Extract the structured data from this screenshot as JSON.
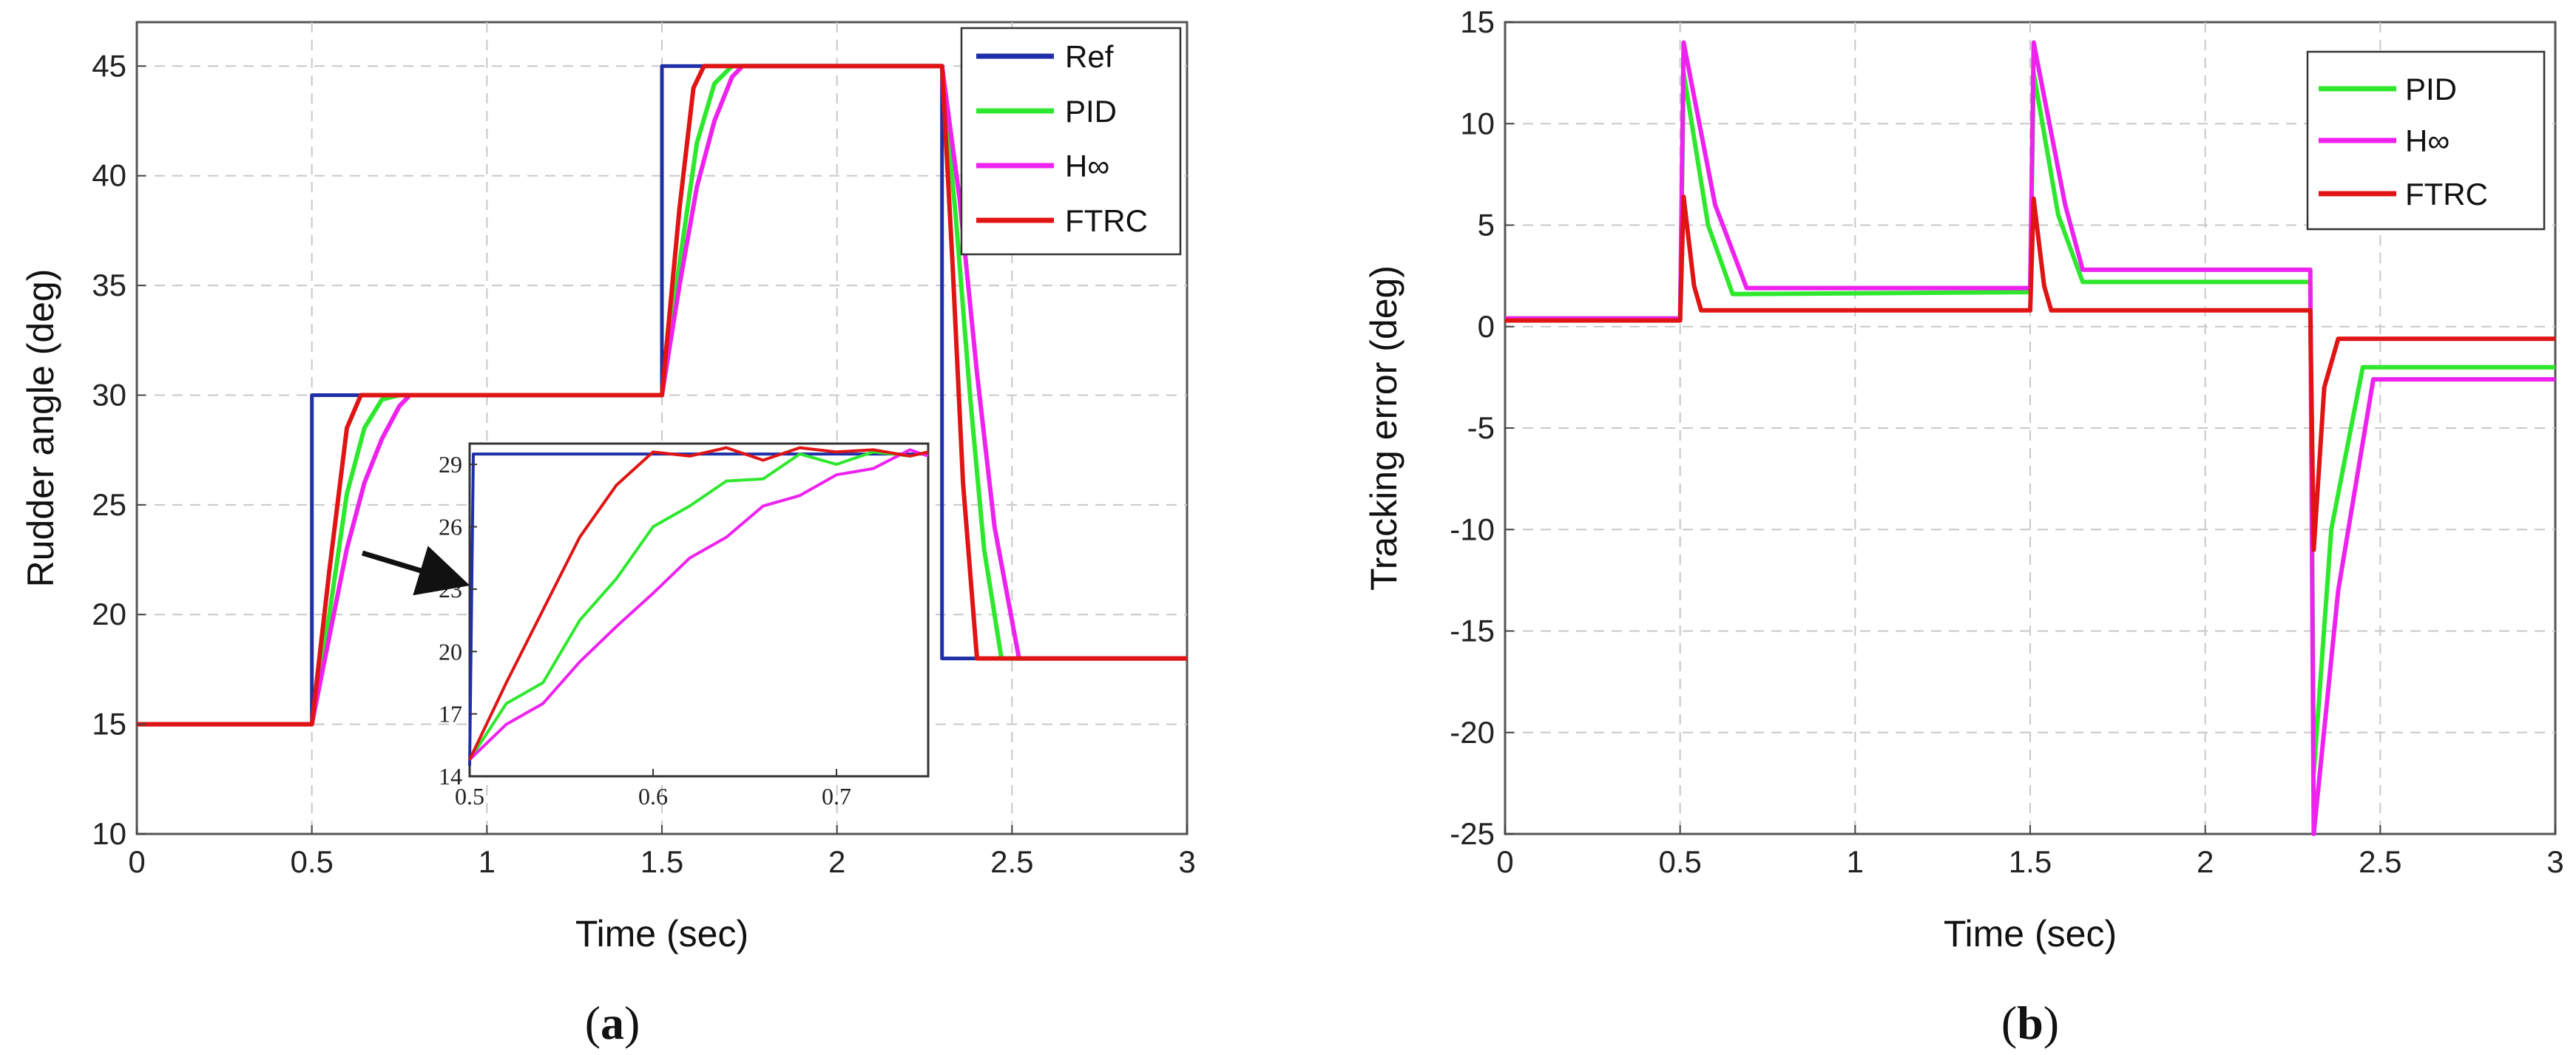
{
  "chart_data": [
    {
      "type": "line",
      "id": "a",
      "caption_letter": "a",
      "xlabel": "Time (sec)",
      "ylabel": "Rudder angle (deg)",
      "xlim": [
        0,
        3
      ],
      "ylim": [
        10,
        47
      ],
      "x_ticks": [
        "0",
        "0.5",
        "1",
        "1.5",
        "2",
        "2.5",
        "3"
      ],
      "y_ticks": [
        "10",
        "15",
        "20",
        "25",
        "30",
        "35",
        "40",
        "45"
      ],
      "grid": true,
      "legend_position": "top-right",
      "colors": {
        "Ref": "#1f2fa8",
        "PID": "#2de82d",
        "H∞": "#ee22ee",
        "FTRC": "#e01414"
      },
      "series": [
        {
          "name": "Ref",
          "style": "step",
          "x": [
            0,
            0.5,
            0.5,
            1.5,
            1.5,
            2.3,
            2.3,
            3
          ],
          "y": [
            15,
            15,
            30,
            30,
            45,
            45,
            18,
            18
          ]
        },
        {
          "name": "PID",
          "x": [
            0,
            0.5,
            0.55,
            0.6,
            0.65,
            0.7,
            0.75,
            1.5,
            1.55,
            1.6,
            1.65,
            1.7,
            2.3,
            2.34,
            2.38,
            2.42,
            2.47,
            3
          ],
          "y": [
            15,
            15,
            20,
            25.5,
            28.5,
            29.8,
            30,
            30,
            36,
            41.5,
            44.2,
            45,
            45,
            38,
            30,
            23,
            18,
            18
          ]
        },
        {
          "name": "H∞",
          "x": [
            0,
            0.5,
            0.55,
            0.6,
            0.65,
            0.7,
            0.75,
            0.78,
            1.5,
            1.55,
            1.6,
            1.65,
            1.7,
            1.73,
            2.3,
            2.35,
            2.4,
            2.45,
            2.52,
            3
          ],
          "y": [
            15,
            15,
            19,
            23,
            26,
            28,
            29.5,
            30,
            30,
            35,
            39.5,
            42.5,
            44.5,
            45,
            45,
            39,
            31,
            24,
            18,
            18
          ]
        },
        {
          "name": "FTRC",
          "x": [
            0,
            0.5,
            0.55,
            0.6,
            0.64,
            0.66,
            1.5,
            1.55,
            1.59,
            1.62,
            2.3,
            2.33,
            2.36,
            2.4,
            3
          ],
          "y": [
            15,
            15,
            22,
            28.5,
            30,
            30,
            30,
            38.5,
            44,
            45,
            45,
            36,
            26,
            18,
            18
          ]
        }
      ],
      "inset": {
        "xlim": [
          0.5,
          0.75
        ],
        "ylim": [
          14,
          30
        ],
        "x_ticks": [
          "0.5",
          "0.6",
          "0.7"
        ],
        "y_ticks": [
          "14",
          "17",
          "20",
          "23",
          "26",
          "29"
        ],
        "series": [
          {
            "name": "Ref",
            "x": [
              0.5,
              0.502,
              0.75
            ],
            "y": [
              14.5,
              29.5,
              29.5
            ]
          },
          {
            "name": "PID",
            "x": [
              0.5,
              0.52,
              0.54,
              0.56,
              0.58,
              0.6,
              0.62,
              0.64,
              0.66,
              0.68,
              0.7,
              0.72,
              0.74,
              0.75
            ],
            "y": [
              14.8,
              17.5,
              18.5,
              21.5,
              23.5,
              26,
              27,
              28.2,
              28.3,
              29.5,
              29,
              29.6,
              29.4,
              29.6
            ]
          },
          {
            "name": "H∞",
            "x": [
              0.5,
              0.52,
              0.54,
              0.56,
              0.58,
              0.6,
              0.62,
              0.64,
              0.66,
              0.68,
              0.7,
              0.72,
              0.74,
              0.75
            ],
            "y": [
              14.8,
              16.5,
              17.5,
              19.5,
              21.2,
              22.8,
              24.5,
              25.5,
              27,
              27.5,
              28.5,
              28.8,
              29.7,
              29.4
            ]
          },
          {
            "name": "FTRC",
            "x": [
              0.5,
              0.52,
              0.54,
              0.56,
              0.58,
              0.6,
              0.62,
              0.64,
              0.66,
              0.68,
              0.7,
              0.72,
              0.74,
              0.75
            ],
            "y": [
              14.8,
              18.5,
              22,
              25.5,
              28,
              29.6,
              29.4,
              29.8,
              29.2,
              29.8,
              29.6,
              29.7,
              29.4,
              29.6
            ]
          }
        ]
      }
    },
    {
      "type": "line",
      "id": "b",
      "caption_letter": "b",
      "xlabel": "Time (sec)",
      "ylabel": "Tracking error (deg)",
      "xlim": [
        0,
        3
      ],
      "ylim": [
        -25,
        15
      ],
      "x_ticks": [
        "0",
        "0.5",
        "1",
        "1.5",
        "2",
        "2.5",
        "3"
      ],
      "y_ticks": [
        "-25",
        "-20",
        "-15",
        "-10",
        "-5",
        "0",
        "5",
        "10",
        "15"
      ],
      "grid": true,
      "legend_position": "top-right",
      "colors": {
        "PID": "#2de82d",
        "H∞": "#ee22ee",
        "FTRC": "#e01414"
      },
      "series": [
        {
          "name": "PID",
          "x": [
            0,
            0.5,
            0.51,
            0.58,
            0.65,
            1.5,
            1.51,
            1.58,
            1.65,
            2.3,
            2.31,
            2.36,
            2.45,
            3
          ],
          "y": [
            0.4,
            0.4,
            12.5,
            5,
            1.6,
            1.7,
            12.5,
            5.5,
            2.2,
            2.2,
            -22,
            -10,
            -2,
            -2
          ]
        },
        {
          "name": "H∞",
          "x": [
            0,
            0.5,
            0.51,
            0.6,
            0.69,
            1.5,
            1.51,
            1.6,
            1.65,
            2.3,
            2.31,
            2.38,
            2.48,
            3
          ],
          "y": [
            0.4,
            0.4,
            14,
            6,
            1.9,
            1.9,
            14,
            6,
            2.8,
            2.8,
            -25,
            -13,
            -2.6,
            -2.6
          ]
        },
        {
          "name": "FTRC",
          "x": [
            0,
            0.5,
            0.51,
            0.54,
            0.56,
            1.5,
            1.51,
            1.54,
            1.56,
            2.3,
            2.31,
            2.34,
            2.38,
            3
          ],
          "y": [
            0.3,
            0.3,
            6.4,
            2,
            0.8,
            0.8,
            6.3,
            2,
            0.8,
            0.8,
            -11,
            -3,
            -0.6,
            -0.6
          ]
        }
      ]
    }
  ]
}
